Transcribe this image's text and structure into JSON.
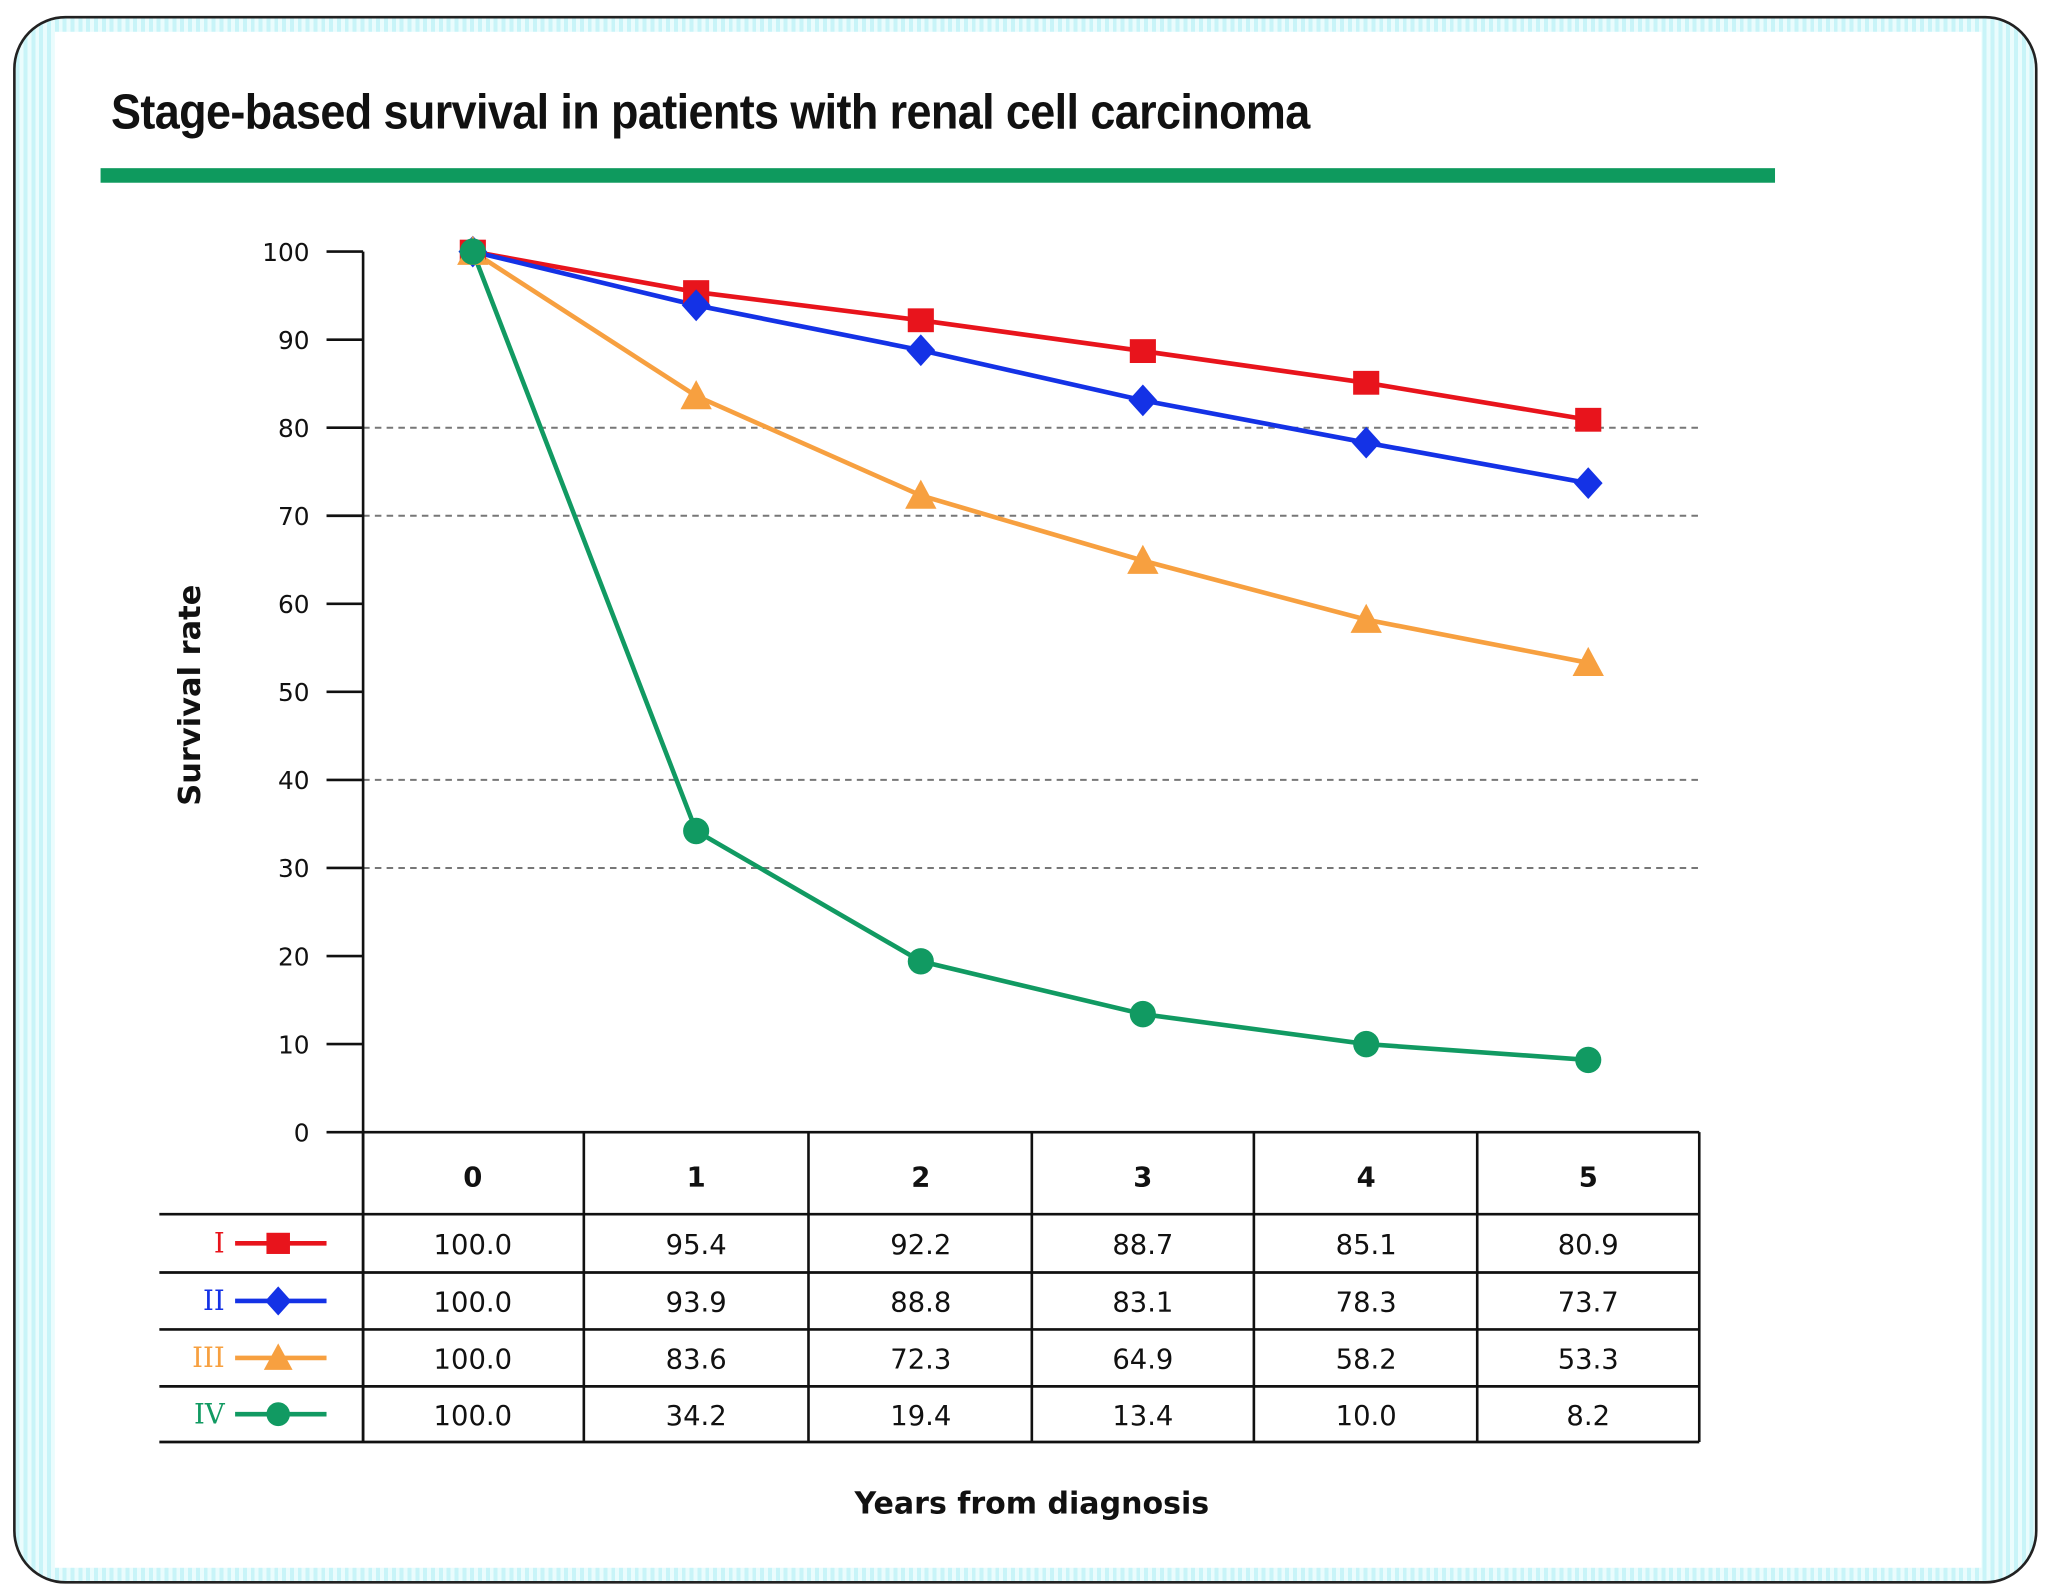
{
  "title": "Stage-based survival in patients with renal cell carcinoma",
  "colors": {
    "accent_bar": "#0e9a5e",
    "I": "#e8141c",
    "II": "#1432e6",
    "III": "#f7a040",
    "IV": "#119a62"
  },
  "chart_data": {
    "type": "line",
    "title": "Stage-based survival in patients with renal cell carcinoma",
    "xlabel": "Years from diagnosis",
    "ylabel": "Survival rate",
    "x": [
      0,
      1,
      2,
      3,
      4,
      5
    ],
    "ylim": [
      0,
      100
    ],
    "yticks": [
      0,
      10,
      20,
      30,
      40,
      50,
      60,
      70,
      80,
      90,
      100
    ],
    "dashed_gridlines": [
      30,
      40,
      70,
      80
    ],
    "legend_placement": "table-left",
    "series": [
      {
        "name": "I",
        "marker": "square",
        "color": "#e8141c",
        "values": [
          100.0,
          95.4,
          92.2,
          88.7,
          85.1,
          80.9
        ],
        "labels": [
          "100.0",
          "95.4",
          "92.2",
          "88.7",
          "85.1",
          "80.9"
        ]
      },
      {
        "name": "II",
        "marker": "diamond",
        "color": "#1432e6",
        "values": [
          100.0,
          93.9,
          88.8,
          83.1,
          78.3,
          73.7
        ],
        "labels": [
          "100.0",
          "93.9",
          "88.8",
          "83.1",
          "78.3",
          "73.7"
        ]
      },
      {
        "name": "III",
        "marker": "triangle",
        "color": "#f7a040",
        "values": [
          100.0,
          83.6,
          72.3,
          64.9,
          58.2,
          53.3
        ],
        "labels": [
          "100.0",
          "83.6",
          "72.3",
          "64.9",
          "58.2",
          "53.3"
        ]
      },
      {
        "name": "IV",
        "marker": "circle",
        "color": "#119a62",
        "values": [
          100.0,
          34.2,
          19.4,
          13.4,
          10.0,
          8.2
        ],
        "labels": [
          "100.0",
          "34.2",
          "19.4",
          "13.4",
          "10.0",
          "8.2"
        ]
      }
    ]
  }
}
